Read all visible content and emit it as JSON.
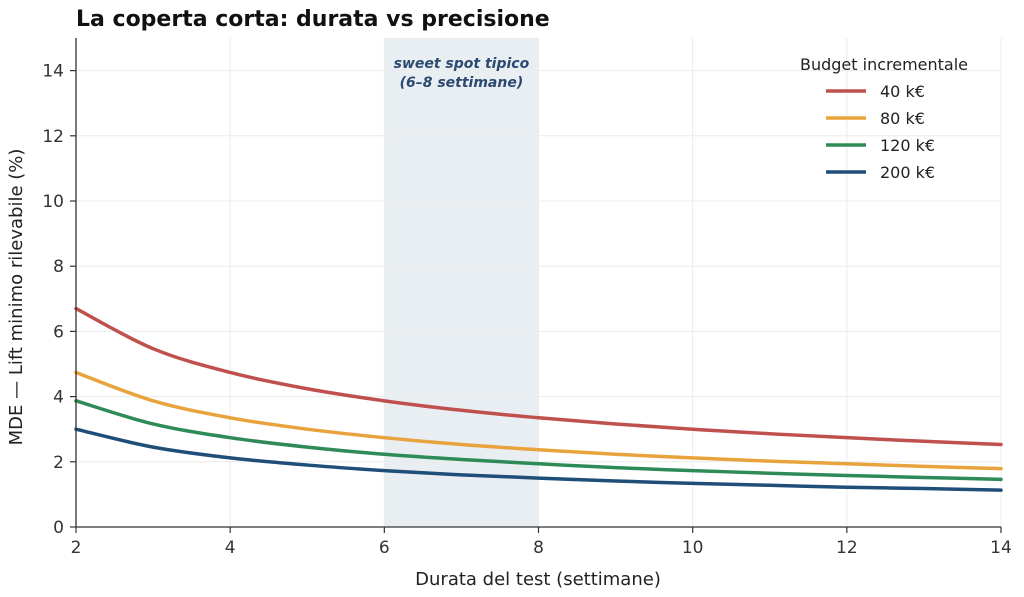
{
  "chart_data": {
    "type": "line",
    "title": "La coperta corta: durata vs precisione",
    "xlabel": "Durata del test (settimane)",
    "ylabel": "MDE — Lift minimo rilevabile (%)",
    "xlim": [
      2,
      14
    ],
    "ylim": [
      0,
      15
    ],
    "xticks": [
      2,
      4,
      6,
      8,
      10,
      12,
      14
    ],
    "yticks": [
      0,
      2,
      4,
      6,
      8,
      10,
      12,
      14
    ],
    "grid": true,
    "legend": {
      "title": "Budget incrementale",
      "placement": "top-right"
    },
    "shaded_region": {
      "x_range": [
        6,
        8
      ],
      "label_line1": "sweet spot tipico",
      "label_line2": "(6–8 settimane)",
      "color": "#e9eef3"
    },
    "series": [
      {
        "name": "40 k€",
        "color": "#c0504d",
        "x": [
          2,
          3,
          4,
          5,
          6,
          7,
          8,
          9,
          10,
          11,
          12,
          13,
          14
        ],
        "values": [
          6.7,
          5.47,
          4.74,
          4.24,
          3.87,
          3.58,
          3.35,
          3.16,
          3.0,
          2.86,
          2.74,
          2.63,
          2.53
        ]
      },
      {
        "name": "80 k€",
        "color": "#e8a33d",
        "x": [
          2,
          3,
          4,
          5,
          6,
          7,
          8,
          9,
          10,
          11,
          12,
          13,
          14
        ],
        "values": [
          4.74,
          3.87,
          3.35,
          3.0,
          2.74,
          2.53,
          2.37,
          2.23,
          2.12,
          2.02,
          1.94,
          1.86,
          1.79
        ]
      },
      {
        "name": "120 k€",
        "color": "#2e8b57",
        "x": [
          2,
          3,
          4,
          5,
          6,
          7,
          8,
          9,
          10,
          11,
          12,
          13,
          14
        ],
        "values": [
          3.87,
          3.16,
          2.74,
          2.45,
          2.23,
          2.07,
          1.94,
          1.82,
          1.73,
          1.65,
          1.58,
          1.52,
          1.46
        ]
      },
      {
        "name": "200 k€",
        "color": "#1f4e79",
        "x": [
          2,
          3,
          4,
          5,
          6,
          7,
          8,
          9,
          10,
          11,
          12,
          13,
          14
        ],
        "values": [
          3.0,
          2.45,
          2.12,
          1.9,
          1.73,
          1.6,
          1.5,
          1.41,
          1.34,
          1.28,
          1.22,
          1.18,
          1.13
        ]
      }
    ]
  }
}
